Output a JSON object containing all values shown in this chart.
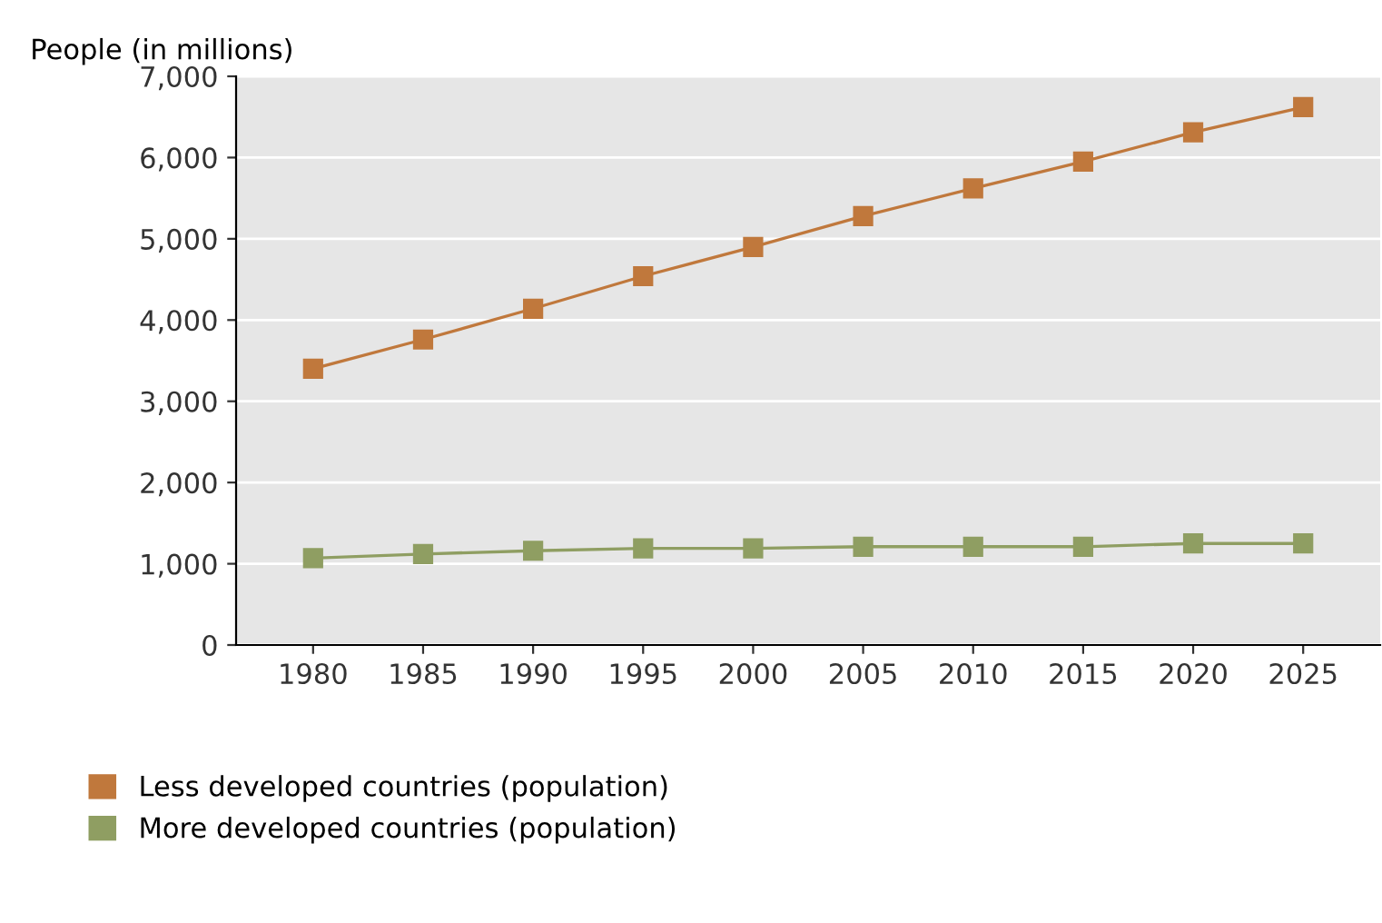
{
  "chart_data": {
    "type": "line",
    "ylabel": "People (in millions)",
    "categories": [
      "1980",
      "1985",
      "1990",
      "1995",
      "2000",
      "2005",
      "2010",
      "2015",
      "2020",
      "2025"
    ],
    "series": [
      {
        "name": "Less developed countries (population)",
        "color": "#c0783c",
        "values": [
          3400,
          3760,
          4140,
          4540,
          4900,
          5280,
          5620,
          5950,
          6310,
          6620
        ]
      },
      {
        "name": "More developed countries (population)",
        "color": "#8f9e62",
        "values": [
          1070,
          1120,
          1160,
          1190,
          1190,
          1210,
          1210,
          1210,
          1250,
          1250
        ]
      }
    ],
    "ylim": [
      0,
      7000
    ],
    "yticks": [
      0,
      {
        "value": 1000,
        "label": "1,000"
      },
      {
        "value": 2000,
        "label": "2,000"
      },
      {
        "value": 3000,
        "label": "3,000"
      },
      {
        "value": 4000,
        "label": "4,000"
      },
      {
        "value": 5000,
        "label": "5,000"
      },
      {
        "value": 6000,
        "label": "6,000"
      },
      {
        "value": 7000,
        "label": "7,000"
      }
    ],
    "grid": "y",
    "legend": "bottom left",
    "marker": "square",
    "line_style": "solid"
  }
}
